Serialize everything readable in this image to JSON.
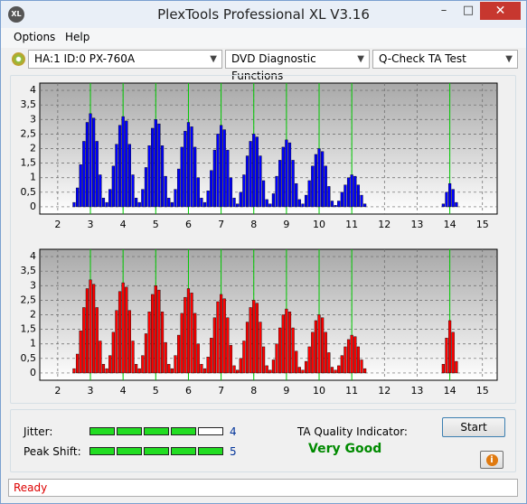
{
  "window": {
    "title": "PlexTools Professional XL V3.16"
  },
  "menu": [
    "Options",
    "Help"
  ],
  "toolbar": {
    "drive": "HA:1 ID:0  PX-760A",
    "function": "DVD Diagnostic Functions",
    "test": "Q-Check TA Test"
  },
  "chart_data": [
    {
      "type": "bar",
      "color": "#0000ff",
      "grid": true,
      "reference_color": "#00c800",
      "xlim": [
        1.45,
        15.45
      ],
      "ylim": [
        -0.25,
        4.25
      ],
      "xticks": [
        2,
        3,
        4,
        5,
        6,
        7,
        8,
        9,
        10,
        11,
        12,
        13,
        14,
        15
      ],
      "yticks": [
        0,
        {
          "value": 0.5,
          "label": "0,5"
        },
        1,
        {
          "value": 1.5,
          "label": "1,5"
        },
        2,
        {
          "value": 2.5,
          "label": "2,5"
        },
        3,
        {
          "value": 3.5,
          "label": "3,5"
        },
        4
      ],
      "reference_lines": [
        3,
        4,
        5,
        6,
        7,
        8,
        9,
        10,
        11,
        14
      ],
      "x": [
        2.5,
        2.6,
        2.7,
        2.8,
        2.9,
        3,
        3.1,
        3.2,
        3.3,
        3.4,
        3.5,
        3.6,
        3.7,
        3.8,
        3.9,
        4,
        4.1,
        4.2,
        4.3,
        4.4,
        4.5,
        4.6,
        4.7,
        4.8,
        4.9,
        5,
        5.1,
        5.2,
        5.3,
        5.4,
        5.5,
        5.6,
        5.7,
        5.8,
        5.9,
        6,
        6.1,
        6.2,
        6.3,
        6.4,
        6.5,
        6.6,
        6.7,
        6.8,
        6.9,
        7,
        7.1,
        7.2,
        7.3,
        7.4,
        7.5,
        7.6,
        7.7,
        7.8,
        7.9,
        8,
        8.1,
        8.2,
        8.3,
        8.4,
        8.5,
        8.6,
        8.7,
        8.8,
        8.9,
        9,
        9.1,
        9.2,
        9.3,
        9.4,
        9.5,
        9.6,
        9.7,
        9.8,
        9.9,
        10,
        10.1,
        10.2,
        10.3,
        10.4,
        10.5,
        10.6,
        10.7,
        10.8,
        10.9,
        11,
        11.1,
        11.2,
        11.3,
        11.4,
        13.8,
        13.9,
        14,
        14.1,
        14.2
      ],
      "values": [
        0.15,
        0.65,
        1.45,
        2.25,
        2.9,
        3.2,
        3.05,
        2.25,
        1.1,
        0.3,
        0.15,
        0.6,
        1.4,
        2.15,
        2.8,
        3.1,
        2.95,
        2.15,
        1.1,
        0.3,
        0.15,
        0.6,
        1.35,
        2.1,
        2.7,
        3.0,
        2.85,
        2.1,
        1.05,
        0.3,
        0.15,
        0.6,
        1.3,
        2.05,
        2.6,
        2.9,
        2.75,
        2.05,
        1,
        0.3,
        0.15,
        0.55,
        1.25,
        1.95,
        2.5,
        2.8,
        2.65,
        1.95,
        1,
        0.3,
        0.1,
        0.5,
        1.1,
        1.75,
        2.25,
        2.5,
        2.4,
        1.75,
        0.9,
        0.25,
        0.1,
        0.45,
        1.05,
        1.6,
        2.05,
        2.3,
        2.2,
        1.6,
        0.8,
        0.25,
        0.1,
        0.4,
        0.9,
        1.4,
        1.8,
        2.0,
        1.9,
        1.4,
        0.7,
        0.2,
        0.05,
        0.2,
        0.5,
        0.75,
        1.0,
        1.1,
        1.05,
        0.75,
        0.4,
        0.1,
        0.1,
        0.5,
        0.8,
        0.6,
        0.15
      ]
    },
    {
      "type": "bar",
      "color": "#ff0000",
      "grid": true,
      "reference_color": "#00c800",
      "xlim": [
        1.45,
        15.45
      ],
      "ylim": [
        -0.25,
        4.25
      ],
      "xticks": [
        2,
        3,
        4,
        5,
        6,
        7,
        8,
        9,
        10,
        11,
        12,
        13,
        14,
        15
      ],
      "yticks": [
        0,
        {
          "value": 0.5,
          "label": "0,5"
        },
        1,
        {
          "value": 1.5,
          "label": "1,5"
        },
        2,
        {
          "value": 2.5,
          "label": "2,5"
        },
        3,
        {
          "value": 3.5,
          "label": "3,5"
        },
        4
      ],
      "reference_lines": [
        3,
        4,
        5,
        6,
        7,
        8,
        9,
        10,
        11,
        14
      ],
      "x": [
        2.5,
        2.6,
        2.7,
        2.8,
        2.9,
        3,
        3.1,
        3.2,
        3.3,
        3.4,
        3.5,
        3.6,
        3.7,
        3.8,
        3.9,
        4,
        4.1,
        4.2,
        4.3,
        4.4,
        4.5,
        4.6,
        4.7,
        4.8,
        4.9,
        5,
        5.1,
        5.2,
        5.3,
        5.4,
        5.5,
        5.6,
        5.7,
        5.8,
        5.9,
        6,
        6.1,
        6.2,
        6.3,
        6.4,
        6.5,
        6.6,
        6.7,
        6.8,
        6.9,
        7,
        7.1,
        7.2,
        7.3,
        7.4,
        7.5,
        7.6,
        7.7,
        7.8,
        7.9,
        8,
        8.1,
        8.2,
        8.3,
        8.4,
        8.5,
        8.6,
        8.7,
        8.8,
        8.9,
        9,
        9.1,
        9.2,
        9.3,
        9.4,
        9.5,
        9.6,
        9.7,
        9.8,
        9.9,
        10,
        10.1,
        10.2,
        10.3,
        10.4,
        10.5,
        10.6,
        10.7,
        10.8,
        10.9,
        11,
        11.1,
        11.2,
        11.3,
        11.4,
        13.8,
        13.9,
        14,
        14.1,
        14.2
      ],
      "values": [
        0.15,
        0.65,
        1.45,
        2.25,
        2.9,
        3.2,
        3.05,
        2.25,
        1.1,
        0.3,
        0.15,
        0.6,
        1.4,
        2.15,
        2.8,
        3.1,
        2.95,
        2.15,
        1.1,
        0.3,
        0.15,
        0.6,
        1.35,
        2.1,
        2.7,
        3.0,
        2.85,
        2.1,
        1.05,
        0.3,
        0.15,
        0.6,
        1.3,
        2.05,
        2.6,
        2.9,
        2.75,
        2.05,
        1,
        0.3,
        0.15,
        0.55,
        1.2,
        1.9,
        2.45,
        2.7,
        2.55,
        1.9,
        0.95,
        0.25,
        0.1,
        0.5,
        1.1,
        1.75,
        2.25,
        2.5,
        2.4,
        1.75,
        0.9,
        0.25,
        0.1,
        0.45,
        1.0,
        1.55,
        2.0,
        2.2,
        2.1,
        1.55,
        0.75,
        0.2,
        0.1,
        0.4,
        0.9,
        1.4,
        1.8,
        2.0,
        1.9,
        1.4,
        0.7,
        0.2,
        0.1,
        0.25,
        0.6,
        0.9,
        1.15,
        1.3,
        1.25,
        0.9,
        0.45,
        0.15,
        0.3,
        1.2,
        1.8,
        1.4,
        0.4
      ]
    }
  ],
  "results": {
    "jitter_label": "Jitter:",
    "jitter": 4,
    "peak_shift_label": "Peak Shift:",
    "peak_shift": 5,
    "quality_label": "TA Quality Indicator:",
    "quality": "Very Good"
  },
  "buttons": {
    "start": "Start"
  },
  "status": "Ready"
}
